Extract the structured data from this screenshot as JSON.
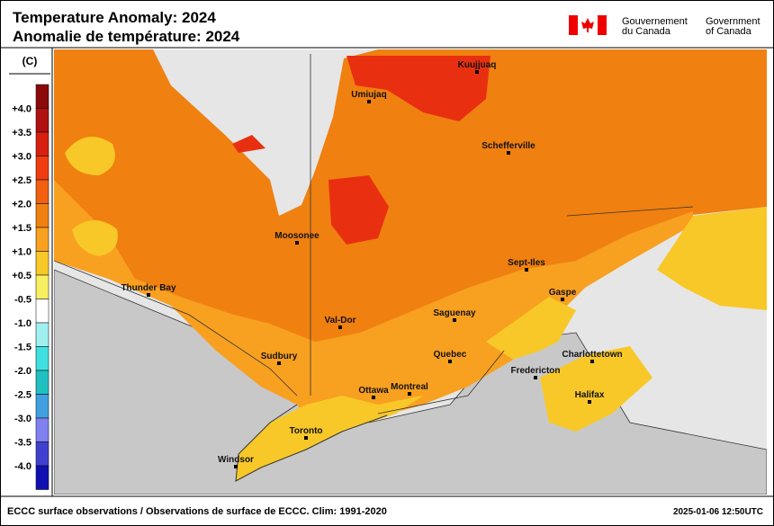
{
  "header": {
    "title_en": "Temperature Anomaly: 2024",
    "title_fr": "Anomalie de température: 2024",
    "gov_fr": [
      "Gouvernement",
      "du Canada"
    ],
    "gov_en": [
      "Government",
      "of Canada"
    ]
  },
  "legend": {
    "unit": "(C)",
    "labels": [
      "+4.0",
      "+3.5",
      "+3.0",
      "+2.5",
      "+2.0",
      "+1.5",
      "+1.0",
      "+0.5",
      "-0.5",
      "-1.0",
      "-1.5",
      "-2.0",
      "-2.5",
      "-3.0",
      "-3.5",
      "-4.0"
    ],
    "colors": [
      "#8c0a0a",
      "#b01010",
      "#d82010",
      "#f03c10",
      "#f06010",
      "#f08010",
      "#f8a020",
      "#f8c828",
      "#f8f060",
      "#ffffff",
      "#a0f0f0",
      "#40e0e0",
      "#20c0c0",
      "#40a0e0",
      "#8080f0",
      "#4040d0",
      "#1010b0"
    ]
  },
  "cities": [
    "Kuujjuaq",
    "Umiujaq",
    "Schefferville",
    "Moosonee",
    "Sept-Iles",
    "Thunder Bay",
    "Gaspe",
    "Saguenay",
    "Val-Dor",
    "Sudbury",
    "Quebec",
    "Charlottetown",
    "Fredericton",
    "Ottawa",
    "Montreal",
    "Halifax",
    "Toronto",
    "Windsor"
  ],
  "footer": {
    "source": "ECCC surface observations / Observations de surface de ECCC. Clim: 1991-2020",
    "timestamp": "2025-01-06 12:50UTC"
  }
}
